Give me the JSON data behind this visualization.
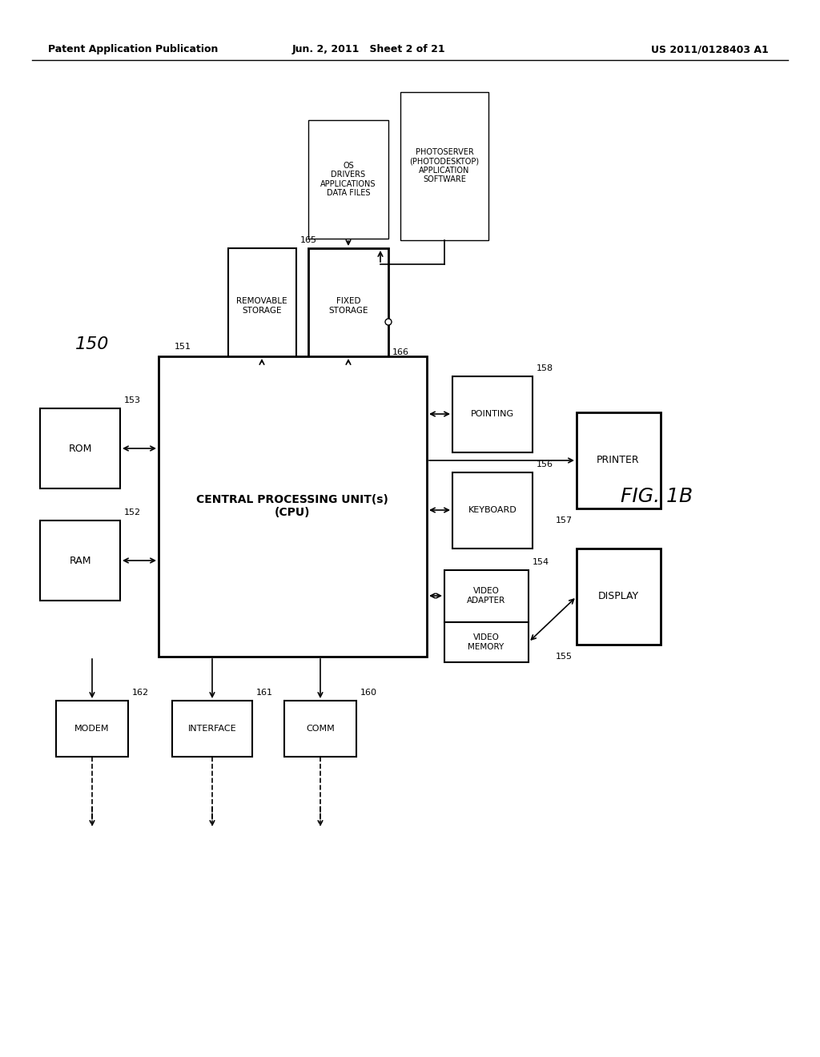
{
  "bg_color": "#ffffff",
  "header_left": "Patent Application Publication",
  "header_center": "Jun. 2, 2011   Sheet 2 of 21",
  "header_right": "US 2011/0128403 A1",
  "fig_label": "FIG. 1B",
  "fig150_label": "150"
}
